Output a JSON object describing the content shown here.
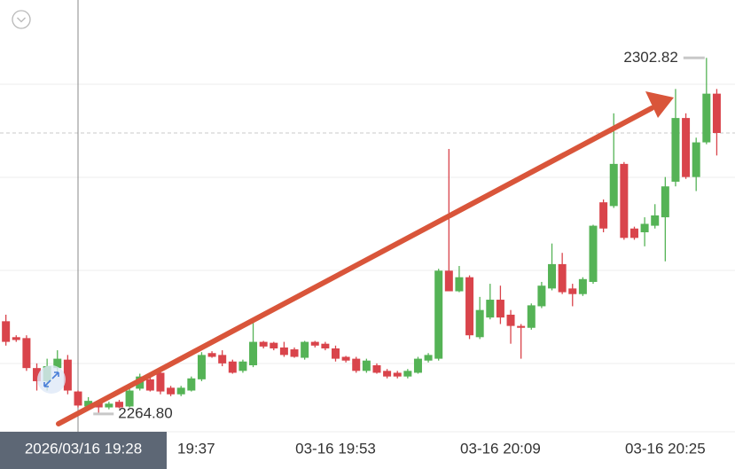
{
  "chart_data": {
    "type": "candlestick",
    "categories": [
      null,
      null,
      null,
      null,
      null,
      null,
      null,
      null,
      null,
      null,
      null,
      null,
      null,
      null,
      null,
      null,
      "19:37",
      null,
      null,
      null,
      null,
      null,
      null,
      null,
      null,
      null,
      null,
      null,
      null,
      null,
      null,
      null,
      "03-16 19:53",
      null,
      null,
      null,
      null,
      null,
      null,
      null,
      null,
      null,
      null,
      null,
      null,
      null,
      null,
      null,
      "03-16 20:09",
      null,
      null,
      null,
      null,
      null,
      null,
      null,
      null,
      null,
      null,
      null,
      null,
      null,
      null,
      null,
      "03-16 20:25",
      null,
      null,
      null,
      null,
      null
    ],
    "open": [
      2274.7,
      2273.0,
      2272.9,
      2269.7,
      2268.3,
      2269.7,
      2270.6,
      2267.2,
      2265.6,
      2266.1,
      2265.5,
      2266.1,
      2265.6,
      2267.5,
      2268.5,
      2269.2,
      2267.6,
      2266.9,
      2267.3,
      2268.5,
      2271.3,
      2271.1,
      2270.4,
      2269.4,
      2270.0,
      2272.5,
      2272.4,
      2271.9,
      2271.7,
      2270.8,
      2272.5,
      2272.3,
      2271.8,
      2270.9,
      2270.7,
      2269.4,
      2270.0,
      2269.4,
      2269.2,
      2268.8,
      2269.2,
      2270.5,
      2270.7,
      2280.1,
      2277.9,
      2279.4,
      2273.0,
      2275.1,
      2277.0,
      2275.4,
      2274.2,
      2274.0,
      2276.3,
      2278.2,
      2280.8,
      2278.2,
      2277.6,
      2278.9,
      2287.4,
      2287.0,
      2291.5,
      2284.6,
      2284.2,
      2284.9,
      2285.8,
      2289.6,
      2296.4,
      2290.1,
      2293.8,
      2299.0
    ],
    "high": [
      2275.4,
      2273.2,
      2273.2,
      2270.2,
      2270.7,
      2271.6,
      2271.1,
      2267.3,
      2266.6,
      2266.3,
      2266.1,
      2266.3,
      2267.5,
      2269.1,
      2268.7,
      2269.4,
      2267.8,
      2267.8,
      2268.8,
      2271.4,
      2271.5,
      2271.6,
      2270.6,
      2270.6,
      2274.9,
      2272.6,
      2272.5,
      2272.5,
      2271.9,
      2272.6,
      2272.6,
      2272.5,
      2272.1,
      2271.0,
      2270.9,
      2270.7,
      2270.2,
      2269.6,
      2269.4,
      2269.6,
      2270.9,
      2271.3,
      2280.3,
      2293.1,
      2280.6,
      2279.6,
      2277.3,
      2278.7,
      2278.5,
      2275.9,
      2274.4,
      2276.6,
      2278.9,
      2283.0,
      2282.0,
      2278.7,
      2279.4,
      2285.0,
      2287.7,
      2296.9,
      2291.7,
      2284.8,
      2285.8,
      2287.2,
      2290.1,
      2299.5,
      2296.9,
      2294.3,
      2302.82,
      2299.5
    ],
    "low": [
      2272.1,
      2272.5,
      2269.4,
      2267.3,
      2267.3,
      2269.2,
      2266.9,
      2265.5,
      2265.3,
      2264.8,
      2265.3,
      2265.4,
      2265.5,
      2267.3,
      2267.2,
      2266.9,
      2266.7,
      2266.7,
      2267.2,
      2268.3,
      2270.8,
      2269.9,
      2269.1,
      2269.2,
      2269.8,
      2271.8,
      2271.6,
      2270.9,
      2270.8,
      2270.6,
      2271.9,
      2271.6,
      2270.4,
      2270.3,
      2269.2,
      2269.2,
      2269.1,
      2268.6,
      2268.6,
      2268.6,
      2269.1,
      2270.3,
      2270.5,
      2277.9,
      2277.8,
      2272.8,
      2272.8,
      2274.9,
      2274.4,
      2272.3,
      2270.7,
      2273.8,
      2276.1,
      2278.0,
      2277.6,
      2276.3,
      2277.4,
      2278.7,
      2284.2,
      2286.8,
      2283.4,
      2283.4,
      2282.7,
      2284.6,
      2281.1,
      2289.1,
      2289.9,
      2288.6,
      2293.6,
      2292.4
    ],
    "close": [
      2272.5,
      2272.7,
      2269.7,
      2268.3,
      2269.9,
      2270.7,
      2267.3,
      2265.7,
      2266.2,
      2265.5,
      2265.9,
      2265.5,
      2267.3,
      2268.8,
      2267.3,
      2267.2,
      2266.9,
      2267.6,
      2268.6,
      2271.1,
      2270.9,
      2270.2,
      2269.2,
      2270.4,
      2272.5,
      2272.0,
      2271.8,
      2271.1,
      2270.9,
      2272.5,
      2272.1,
      2271.8,
      2270.7,
      2270.5,
      2269.4,
      2270.5,
      2269.2,
      2268.8,
      2268.8,
      2269.4,
      2270.7,
      2271.1,
      2280.1,
      2277.9,
      2279.4,
      2273.2,
      2275.9,
      2277.0,
      2275.1,
      2274.2,
      2274.0,
      2276.4,
      2278.5,
      2280.8,
      2277.8,
      2277.6,
      2279.2,
      2284.9,
      2284.6,
      2291.5,
      2283.6,
      2283.6,
      2285.1,
      2286.0,
      2289.1,
      2296.4,
      2290.1,
      2293.8,
      2299.0,
      2294.8
    ],
    "up_color": "#55b356",
    "down_color": "#d9444b",
    "ylim": [
      2262.9,
      2309.0
    ],
    "max_label": "2302.82",
    "min_label": "2264.80",
    "crosshair": {
      "label": "2026/03/16 19:28",
      "index": 7
    }
  }
}
